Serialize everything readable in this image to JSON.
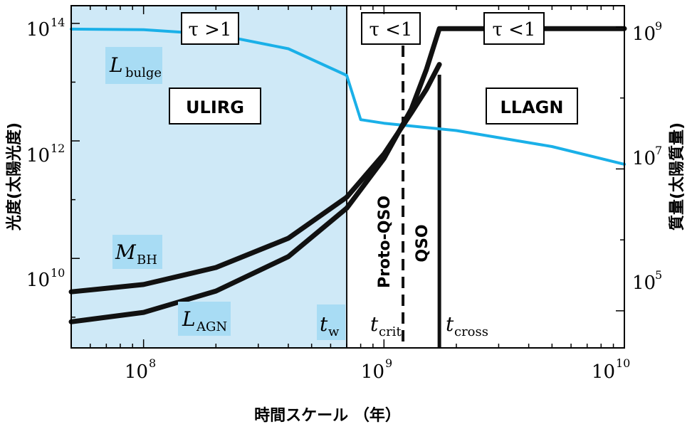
{
  "chart_data": {
    "type": "line",
    "x_axis": {
      "label": "時間スケール （年）",
      "scale": "log",
      "range": [
        50000000,
        10000000000
      ],
      "ticks": [
        {
          "value": 100000000,
          "base": "10",
          "exp": "8"
        },
        {
          "value": 1000000000,
          "base": "10",
          "exp": "9"
        },
        {
          "value": 10000000000,
          "base": "10",
          "exp": "10"
        }
      ]
    },
    "y_left_axis": {
      "label": "光度(太陽光度)",
      "scale": "log",
      "range": [
        300000000,
        200000000000000
      ],
      "ticks": [
        {
          "value": 100000000000000,
          "base": "10",
          "exp": "14"
        },
        {
          "value": 1000000000000,
          "base": "10",
          "exp": "12"
        },
        {
          "value": 10000000000,
          "base": "10",
          "exp": "10"
        }
      ]
    },
    "y_right_axis": {
      "label": "質量(太陽質量)",
      "scale": "log",
      "range": [
        30000,
        2000000000
      ],
      "ticks": [
        {
          "value": 1000000000,
          "base": "10",
          "exp": "9"
        },
        {
          "value": 10000000,
          "base": "10",
          "exp": "7"
        },
        {
          "value": 100000,
          "base": "10",
          "exp": "5"
        }
      ]
    },
    "series": [
      {
        "name": "L_bulge",
        "axis": "left",
        "color": "#1ab0e8",
        "x": [
          50000000,
          100000000,
          200000000,
          400000000,
          700000000,
          800000000,
          1000000000,
          2000000000,
          5000000000,
          10000000000
        ],
        "y": [
          80000000000000,
          78000000000000,
          65000000000000,
          37000000000000,
          13000000000000,
          2300000000000,
          2000000000000,
          1500000000000,
          800000000000,
          400000000000
        ]
      },
      {
        "name": "M_BH",
        "axis": "right",
        "color": "#111111",
        "x": [
          50000000,
          100000000,
          200000000,
          400000000,
          700000000,
          1000000000,
          1300000000,
          1500000000,
          1700000000,
          10000000000
        ],
        "y": [
          70000,
          95000,
          190000,
          580000,
          2800000,
          14000000,
          70000000,
          250000000,
          950000000,
          950000000
        ]
      },
      {
        "name": "L_AGN",
        "axis": "left",
        "color": "#111111",
        "x": [
          50000000,
          100000000,
          200000000,
          400000000,
          700000000,
          1000000000,
          1300000000,
          1500000000,
          1700000000
        ],
        "y": [
          2700000000,
          3600000000,
          7000000000,
          22000000000,
          110000000000,
          600000000000,
          3000000000000,
          7500000000000,
          20000000000000
        ]
      }
    ],
    "verticals": [
      {
        "name": "t_w",
        "x": 700000000,
        "style": "thin"
      },
      {
        "name": "t_crit",
        "x": 1200000000,
        "style": "dashed"
      },
      {
        "name": "t_cross",
        "x": 1700000000,
        "style": "thick"
      }
    ],
    "shaded_region": {
      "x": [
        50000000,
        700000000
      ],
      "color": "#cfe9f7"
    },
    "series_labels": [
      {
        "series": "L_bulge",
        "main": "L",
        "sub": "bulge"
      },
      {
        "series": "M_BH",
        "main": "M",
        "sub": "BH"
      },
      {
        "series": "L_AGN",
        "main": "L",
        "sub": "AGN"
      }
    ],
    "time_labels": [
      {
        "name": "t_w",
        "main": "t",
        "sub": "w"
      },
      {
        "name": "t_crit",
        "main": "t",
        "sub": "crit"
      },
      {
        "name": "t_cross",
        "main": "t",
        "sub": "cross"
      }
    ],
    "tau_labels": [
      "τ >1",
      "τ <1",
      "τ <1"
    ],
    "phase_labels": [
      "ULIRG",
      "LLAGN"
    ],
    "rotated_labels": [
      "Proto-QSO",
      "QSO"
    ]
  }
}
